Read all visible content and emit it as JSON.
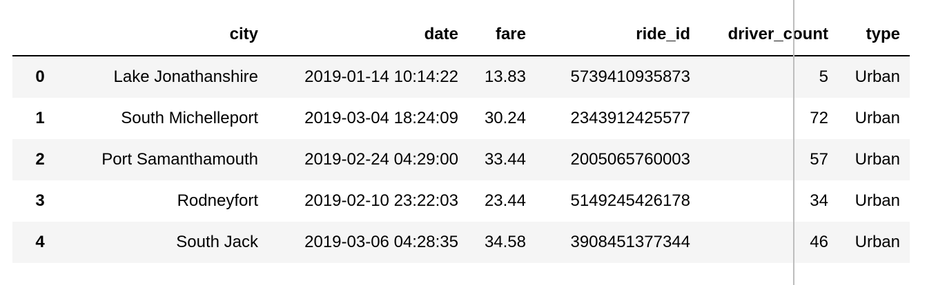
{
  "dataframe": {
    "index_header": "",
    "columns": [
      "city",
      "date",
      "fare",
      "ride_id",
      "driver_count",
      "type"
    ],
    "rows": [
      {
        "index": "0",
        "city": "Lake Jonathanshire",
        "date": "2019-01-14 10:14:22",
        "fare": "13.83",
        "ride_id": "5739410935873",
        "driver_count": "5",
        "type": "Urban"
      },
      {
        "index": "1",
        "city": "South Michelleport",
        "date": "2019-03-04 18:24:09",
        "fare": "30.24",
        "ride_id": "2343912425577",
        "driver_count": "72",
        "type": "Urban"
      },
      {
        "index": "2",
        "city": "Port Samanthamouth",
        "date": "2019-02-24 04:29:00",
        "fare": "33.44",
        "ride_id": "2005065760003",
        "driver_count": "57",
        "type": "Urban"
      },
      {
        "index": "3",
        "city": "Rodneyfort",
        "date": "2019-02-10 23:22:03",
        "fare": "23.44",
        "ride_id": "5149245426178",
        "driver_count": "34",
        "type": "Urban"
      },
      {
        "index": "4",
        "city": "South Jack",
        "date": "2019-03-06 04:28:35",
        "fare": "34.58",
        "ride_id": "3908451377344",
        "driver_count": "46",
        "type": "Urban"
      }
    ]
  }
}
